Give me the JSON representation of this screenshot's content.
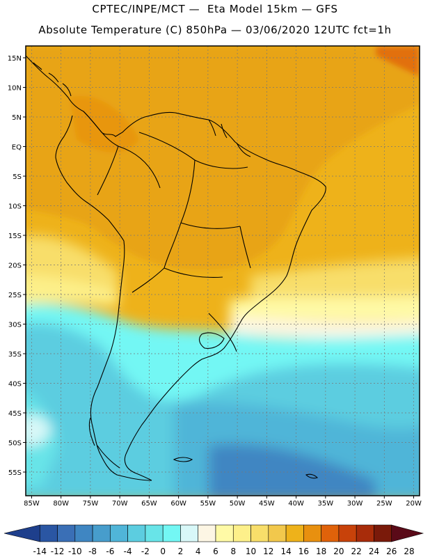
{
  "header": {
    "line1": "CPTEC/INPE/MCT —  Eta Model 15km — GFS",
    "line2": "Absolute Temperature (C) 850hPa — 03/06/2020 12UTC fct=1h"
  },
  "axes": {
    "lat_labels": [
      "15N",
      "10N",
      "5N",
      "EQ",
      "5S",
      "10S",
      "15S",
      "20S",
      "25S",
      "30S",
      "35S",
      "40S",
      "45S",
      "50S",
      "55S"
    ],
    "lon_labels": [
      "85W",
      "80W",
      "75W",
      "70W",
      "65W",
      "60W",
      "55W",
      "50W",
      "45W",
      "40W",
      "35W",
      "30W",
      "25W",
      "20W"
    ]
  },
  "legend": {
    "labels": [
      "-14",
      "-12",
      "-10",
      "-8",
      "-6",
      "-4",
      "-2",
      "0",
      "2",
      "4",
      "6",
      "8",
      "10",
      "12",
      "14",
      "16",
      "18",
      "20",
      "22",
      "24",
      "26",
      "28"
    ],
    "colors": [
      "#1e3f8c",
      "#2a56a3",
      "#3a6fb6",
      "#3f86c2",
      "#479dcc",
      "#50b5d8",
      "#5ccde0",
      "#68e4e8",
      "#73f7f4",
      "#d8f8f8",
      "#fdf6e4",
      "#fffaa6",
      "#fdf08a",
      "#f8de6a",
      "#f2c84c",
      "#eeb21a",
      "#e8900f",
      "#e0620a",
      "#c8420a",
      "#a82c0a",
      "#7a1a0a",
      "#5a0a18"
    ]
  },
  "map_data": {
    "variable": "Absolute Temperature (C) 850hPa",
    "lon_range": [
      -86,
      -19
    ],
    "lat_range": [
      17,
      -59
    ]
  }
}
